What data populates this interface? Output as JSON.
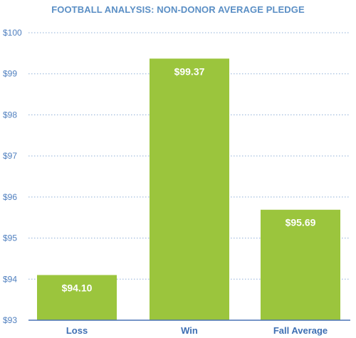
{
  "chart_data": {
    "type": "bar",
    "title": "FOOTBALL ANALYSIS: NON-DONOR AVERAGE PLEDGE",
    "xlabel": "",
    "ylabel": "",
    "categories": [
      "Loss",
      "Win",
      "Fall Average"
    ],
    "values": [
      94.1,
      99.37,
      95.69
    ],
    "data_labels": [
      "$94.10",
      "$99.37",
      "$95.69"
    ],
    "ylim": [
      93,
      100
    ],
    "y_ticks": [
      93,
      94,
      95,
      96,
      97,
      98,
      99,
      100
    ],
    "y_tick_labels": [
      "$93",
      "$94",
      "$95",
      "$96",
      "$97",
      "$98",
      "$99",
      "$100"
    ],
    "grid": true,
    "legend": "none",
    "colors": {
      "bar": "#9bc53d",
      "title": "#5b8fc5",
      "tick": "#4f7fbf",
      "category": "#3e6fb3",
      "grid": "#8fb0d8",
      "axis": "#4a73b5"
    }
  }
}
